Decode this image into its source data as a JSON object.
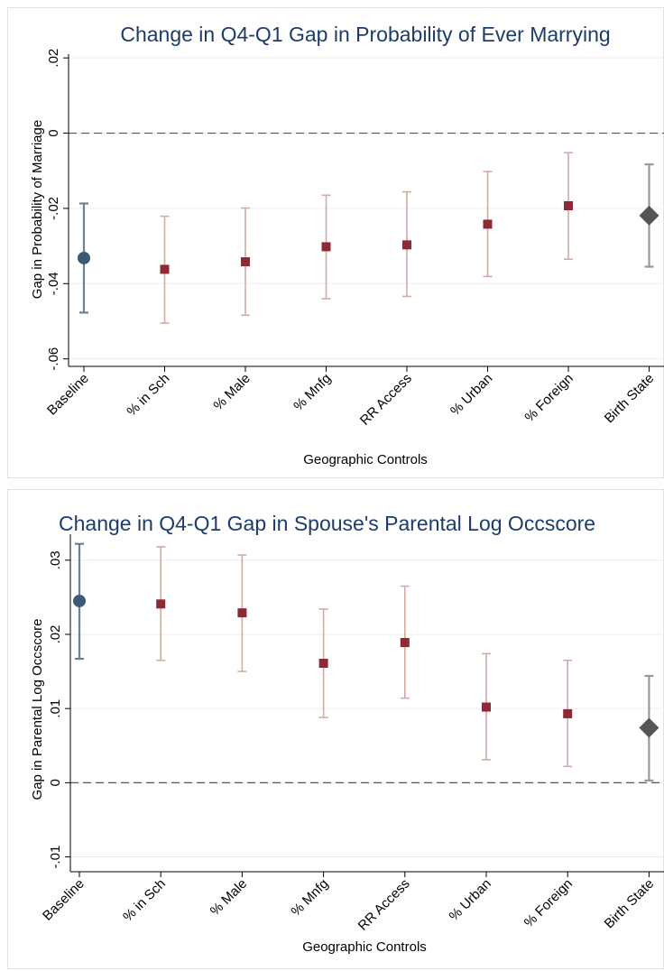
{
  "chart_data": [
    {
      "type": "scatter",
      "title": "Change in Q4-Q1 Gap in Probability of Ever Marrying",
      "xlabel": "Geographic Controls",
      "ylabel": "Gap in Probability of Marriage",
      "categories": [
        "Baseline",
        "% in Sch",
        "% Male",
        "% Mnfg",
        "RR Access",
        "% Urban",
        "% Foreign",
        "Birth State"
      ],
      "ylim": [
        -0.062,
        0.021
      ],
      "yticks": [
        0.02,
        0,
        -0.02,
        -0.04,
        -0.06
      ],
      "yticklabels": [
        ".02",
        "0",
        "-.02",
        "-.04",
        "-.06"
      ],
      "reference_line": 0,
      "grid": true,
      "points": [
        {
          "estimate": -0.0332,
          "ci_low": -0.0477,
          "ci_high": -0.0187,
          "marker": "circle"
        },
        {
          "estimate": -0.0362,
          "ci_low": -0.0505,
          "ci_high": -0.0221,
          "marker": "square"
        },
        {
          "estimate": -0.0342,
          "ci_low": -0.0484,
          "ci_high": -0.0199,
          "marker": "square"
        },
        {
          "estimate": -0.0302,
          "ci_low": -0.044,
          "ci_high": -0.0165,
          "marker": "square"
        },
        {
          "estimate": -0.0297,
          "ci_low": -0.0434,
          "ci_high": -0.0156,
          "marker": "square"
        },
        {
          "estimate": -0.0242,
          "ci_low": -0.0381,
          "ci_high": -0.0102,
          "marker": "square"
        },
        {
          "estimate": -0.0193,
          "ci_low": -0.0335,
          "ci_high": -0.0052,
          "marker": "square"
        },
        {
          "estimate": -0.0219,
          "ci_low": -0.0355,
          "ci_high": -0.0083,
          "marker": "diamond"
        }
      ]
    },
    {
      "type": "scatter",
      "title": "Change in Q4-Q1 Gap in Spouse's Parental Log Occscore",
      "xlabel": "Geographic Controls",
      "ylabel": "Gap in Parental Log Occscore",
      "categories": [
        "Baseline",
        "% in Sch",
        "% Male",
        "% Mnfg",
        "RR Access",
        "% Urban",
        "% Foreign",
        "Birth State"
      ],
      "ylim": [
        -0.012,
        0.0335
      ],
      "yticks": [
        0.03,
        0.02,
        0.01,
        0,
        -0.01
      ],
      "yticklabels": [
        ".03",
        ".02",
        ".01",
        "0",
        "-.01"
      ],
      "reference_line": 0,
      "grid": true,
      "points": [
        {
          "estimate": 0.0245,
          "ci_low": 0.0167,
          "ci_high": 0.0322,
          "marker": "circle"
        },
        {
          "estimate": 0.0241,
          "ci_low": 0.0165,
          "ci_high": 0.0318,
          "marker": "square"
        },
        {
          "estimate": 0.0229,
          "ci_low": 0.015,
          "ci_high": 0.0307,
          "marker": "square"
        },
        {
          "estimate": 0.0161,
          "ci_low": 0.0088,
          "ci_high": 0.0234,
          "marker": "square"
        },
        {
          "estimate": 0.0189,
          "ci_low": 0.0114,
          "ci_high": 0.0265,
          "marker": "square"
        },
        {
          "estimate": 0.0102,
          "ci_low": 0.0031,
          "ci_high": 0.0174,
          "marker": "square"
        },
        {
          "estimate": 0.0093,
          "ci_low": 0.0022,
          "ci_high": 0.0165,
          "marker": "square"
        },
        {
          "estimate": 0.0074,
          "ci_low": 0.0003,
          "ci_high": 0.0144,
          "marker": "diamond"
        }
      ]
    }
  ],
  "colors": {
    "title": "#1c3c6c",
    "baseline_marker": "#3c5a75",
    "baseline_ci": "#6d8196",
    "control_marker": "#8e2a33",
    "control_ci": "#d2aaa6",
    "birthstate_marker": "#555555",
    "birthstate_ci": "#999999",
    "grid": "#e9edf1",
    "reference": "#555555",
    "frame": "#e1e1e1"
  }
}
